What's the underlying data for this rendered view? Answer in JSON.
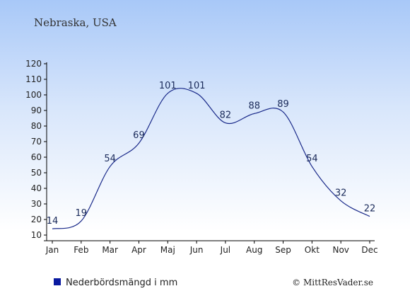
{
  "chart_data": {
    "type": "line",
    "title": "Nebraska, USA",
    "categories": [
      "Jan",
      "Feb",
      "Mar",
      "Apr",
      "Maj",
      "Jun",
      "Jul",
      "Aug",
      "Sep",
      "Okt",
      "Nov",
      "Dec"
    ],
    "series": [
      {
        "name": "Nederbördsmängd i mm",
        "values": [
          14,
          19,
          54,
          69,
          101,
          101,
          82,
          88,
          89,
          54,
          32,
          22
        ]
      }
    ],
    "y_ticks": [
      10,
      20,
      30,
      40,
      50,
      60,
      70,
      80,
      90,
      100,
      110,
      120
    ],
    "ylim": [
      10,
      120
    ],
    "grid": false,
    "legend_position": "bottom-left",
    "line_color": "#1a2a8a",
    "legend_color": "#0a1aa0"
  },
  "credit": "© MittResVader.se"
}
